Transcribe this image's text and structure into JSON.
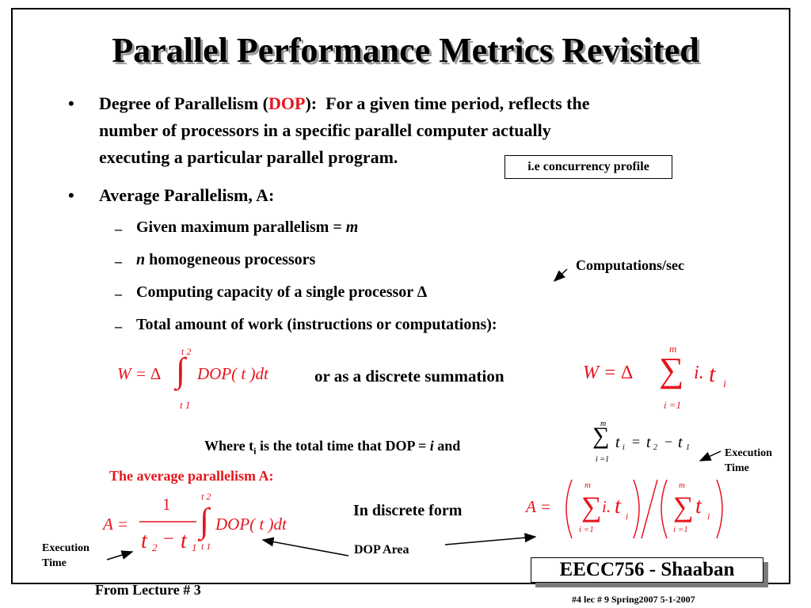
{
  "title": "Parallel Performance Metrics Revisited",
  "bullet1": {
    "head": "Degree of Parallelism (",
    "dop": "DOP",
    "close": "):",
    "desc1": "For a given time period, reflects the",
    "desc2": "number of processors in a specific parallel computer actually",
    "desc3": "executing a particular parallel program."
  },
  "concurrency_box": "i.e concurrency profile",
  "bullet2": "Average Parallelism,  A:",
  "sub_items": {
    "s1_text": "Given maximum parallelism = ",
    "s1_var": "m",
    "s2_var": "n",
    "s2_text": " homogeneous processors",
    "s3": "Computing capacity of a single processor ∆",
    "s4": "Total amount of work (instructions or computations):"
  },
  "computations_label": "Computations/sec",
  "or_discrete": "or as a discrete summation",
  "where_text": "Where t",
  "where_sub": "i",
  "where_rest": " is the total time that DOP = ",
  "where_i": "i",
  "where_and": "  and",
  "exec_time_right": [
    "Execution",
    "Time"
  ],
  "avg_parallelism_label": "The average parallelism A:",
  "in_discrete_form": "In discrete form",
  "dop_area": "DOP Area",
  "exec_time_left": [
    "Execution",
    "Time"
  ],
  "from_lecture": "From Lecture # 3",
  "badge": "EECC756 - Shaaban",
  "footer": "#4   lec # 9   Spring2007  5-1-2007",
  "bullet_glyph": "•",
  "dash_glyph": "–",
  "colors": {
    "accent_red": "#e8141c",
    "shadow_gray": "#9a9a9a"
  }
}
